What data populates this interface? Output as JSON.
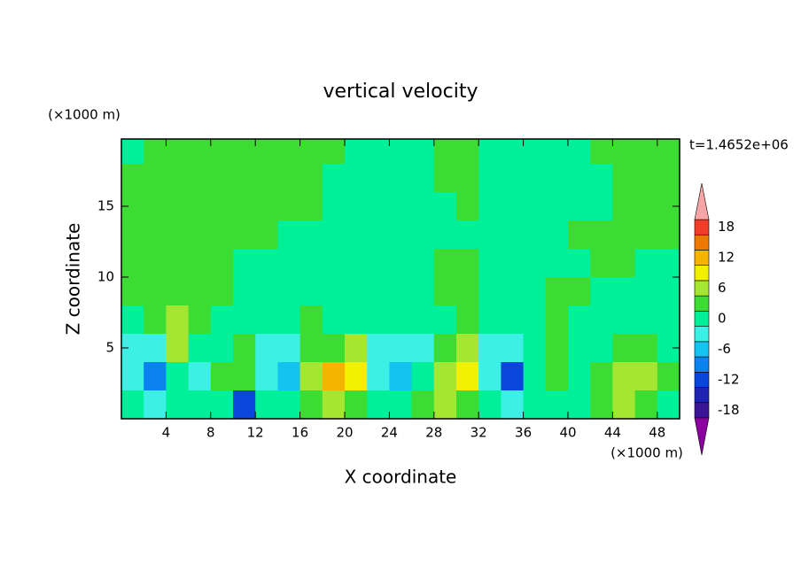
{
  "chart_data": {
    "type": "contour",
    "title": "vertical velocity",
    "x_label": "X coordinate",
    "y_label": "Z coordinate",
    "x_unit": "(×1000 m)",
    "y_unit": "(×1000 m)",
    "time_label": "t=1.4652e+06",
    "xlim": [
      0,
      50
    ],
    "ylim": [
      0,
      19.75
    ],
    "xticks": [
      4,
      8,
      12,
      16,
      20,
      24,
      28,
      32,
      36,
      40,
      44,
      48
    ],
    "yticks": [
      5,
      10,
      15
    ],
    "levels": [
      -19.5,
      -16.5,
      -13.5,
      -10.5,
      -7.5,
      -4.5,
      -1.5,
      1.5,
      4.5,
      7.5,
      10.5,
      13.5,
      16.5,
      19.5
    ],
    "colors": [
      "#8c00a0",
      "#3c1496",
      "#1e23b4",
      "#0a46dc",
      "#0a82f0",
      "#14c3f0",
      "#3cf0e6",
      "#00f09a",
      "#3cdc32",
      "#a5e632",
      "#f0f000",
      "#f5b400",
      "#f07800",
      "#f03c28",
      "#f5a5a5"
    ],
    "colorbar_ticks": [
      -18,
      -12,
      -6,
      0,
      6,
      12,
      18
    ],
    "field": {
      "x": [
        1,
        3,
        5,
        7,
        9,
        11,
        13,
        15,
        17,
        19,
        21,
        23,
        25,
        27,
        29,
        31,
        33,
        35,
        37,
        39,
        41,
        43,
        45,
        47,
        49
      ],
      "z": [
        19,
        17,
        15,
        13,
        11,
        9,
        7,
        5,
        3,
        1
      ],
      "values": [
        [
          0,
          3,
          3,
          3,
          3,
          3,
          3,
          3,
          3,
          3,
          0,
          0,
          0,
          0,
          3,
          3,
          0,
          0,
          0,
          0,
          0,
          3,
          3,
          3,
          3
        ],
        [
          3,
          3,
          3,
          3,
          3,
          3,
          3,
          3,
          3,
          0,
          0,
          0,
          0,
          0,
          3,
          3,
          0,
          0,
          0,
          0,
          0,
          0,
          3,
          3,
          3
        ],
        [
          3,
          3,
          3,
          3,
          3,
          3,
          3,
          3,
          3,
          0,
          0,
          0,
          0,
          0,
          0,
          3,
          0,
          0,
          0,
          0,
          0,
          0,
          3,
          3,
          3
        ],
        [
          3,
          3,
          3,
          3,
          3,
          3,
          3,
          0,
          0,
          0,
          0,
          0,
          0,
          0,
          0,
          0,
          0,
          0,
          0,
          0,
          3,
          3,
          3,
          3,
          3
        ],
        [
          3,
          3,
          3,
          3,
          3,
          0,
          0,
          0,
          0,
          0,
          0,
          0,
          0,
          0,
          3,
          3,
          0,
          0,
          0,
          0,
          0,
          3,
          3,
          0,
          0
        ],
        [
          3,
          3,
          3,
          3,
          3,
          0,
          0,
          0,
          0,
          0,
          0,
          0,
          0,
          0,
          3,
          3,
          0,
          0,
          0,
          3,
          3,
          0,
          0,
          0,
          0
        ],
        [
          0,
          3,
          6,
          3,
          0,
          0,
          0,
          0,
          3,
          0,
          0,
          0,
          0,
          0,
          0,
          3,
          0,
          0,
          0,
          3,
          0,
          0,
          0,
          0,
          0
        ],
        [
          -3,
          -3,
          6,
          0,
          0,
          3,
          -3,
          -3,
          3,
          3,
          6,
          -3,
          -3,
          -3,
          3,
          6,
          -3,
          -3,
          0,
          3,
          0,
          0,
          3,
          3,
          0
        ],
        [
          -3,
          -9,
          0,
          -3,
          3,
          3,
          -3,
          -6,
          6,
          12,
          9,
          -3,
          -6,
          0,
          6,
          9,
          -3,
          -12,
          0,
          3,
          0,
          3,
          6,
          6,
          3
        ],
        [
          0,
          -3,
          0,
          0,
          0,
          -12,
          0,
          0,
          3,
          6,
          3,
          0,
          0,
          3,
          6,
          3,
          0,
          -3,
          0,
          0,
          0,
          3,
          6,
          3,
          0
        ]
      ]
    }
  }
}
